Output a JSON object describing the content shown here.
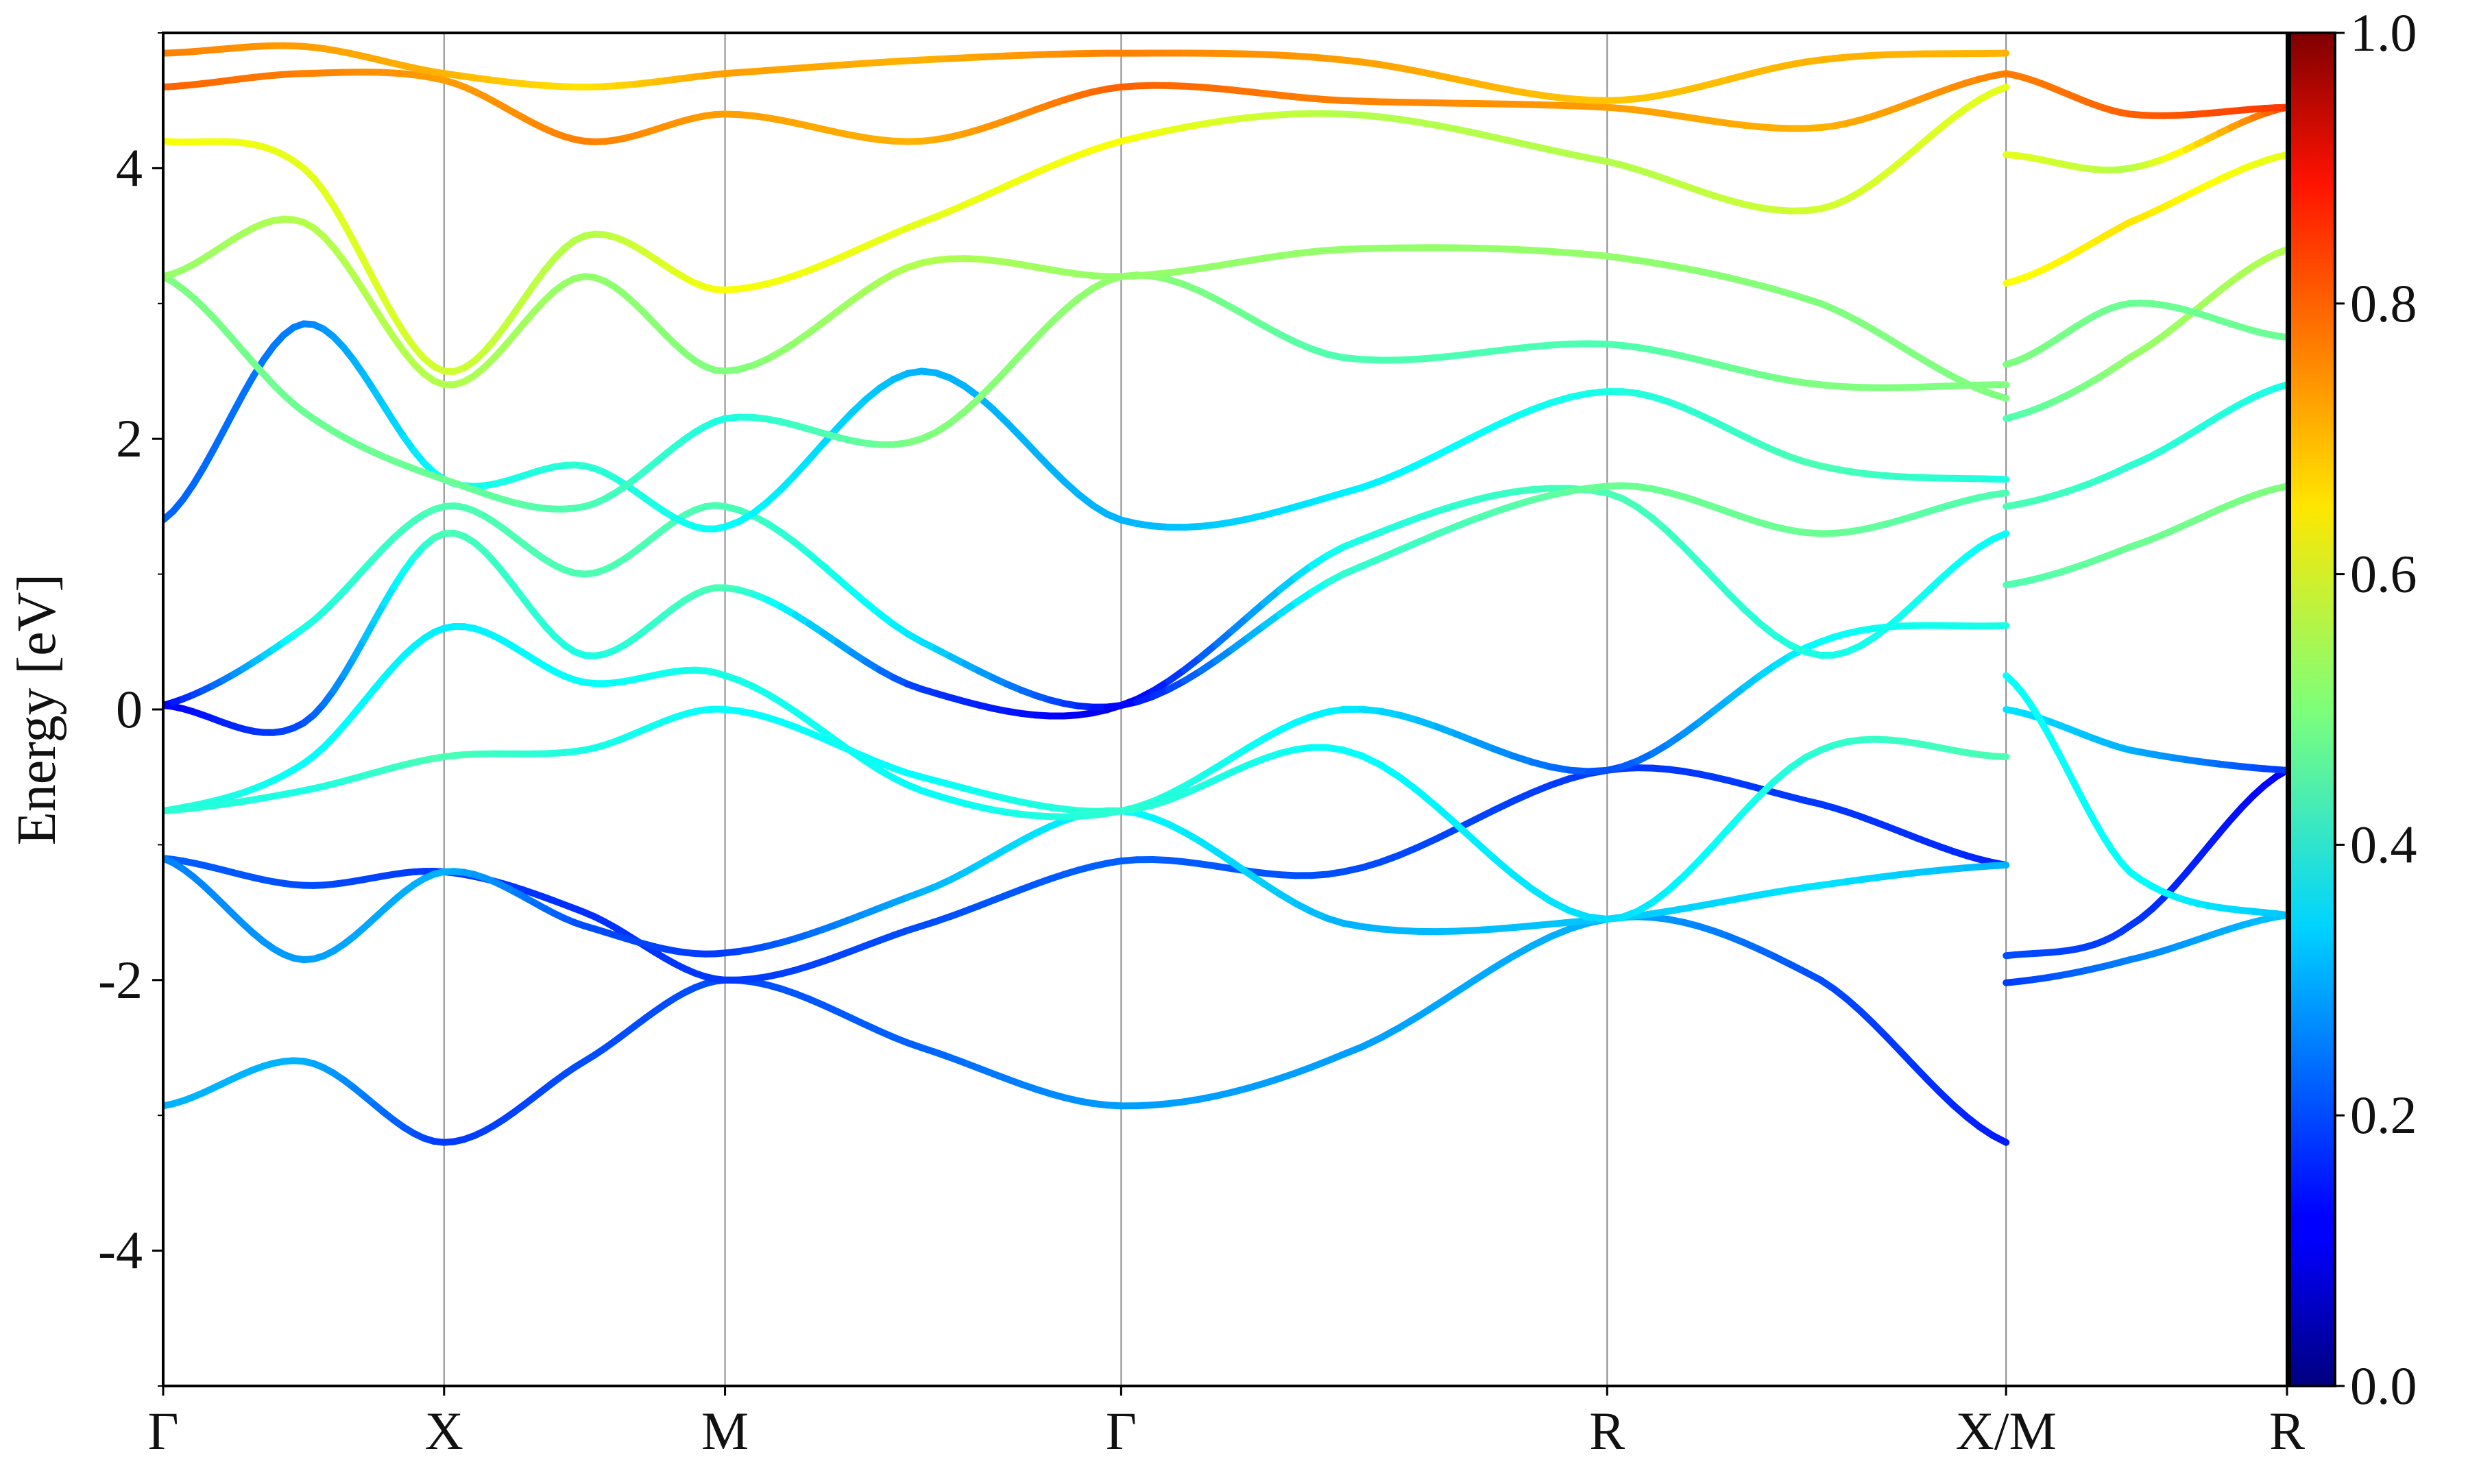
{
  "chart_data": {
    "type": "line",
    "title": "",
    "xlabel": "",
    "ylabel": "Energy [eV]",
    "ylim": [
      -5,
      5
    ],
    "xlim": [
      0,
      7.56
    ],
    "grid": "vertical lines at high-symmetry points only",
    "y_ticks": [
      -4,
      -2,
      0,
      2,
      4
    ],
    "y_tick_labels": [
      "-4",
      "-2",
      "0",
      "2",
      "4"
    ],
    "k_points": [
      {
        "x": 0,
        "label": "Γ"
      },
      {
        "x": 1.0,
        "label": "X"
      },
      {
        "x": 2.0,
        "label": "M"
      },
      {
        "x": 3.41,
        "label": "Γ"
      },
      {
        "x": 5.14,
        "label": "R"
      },
      {
        "x": 6.56,
        "label": "X/M"
      },
      {
        "x": 7.56,
        "label": "R"
      }
    ],
    "colorbar": {
      "colormap": "jet",
      "range": [
        0.0,
        1.0
      ],
      "ticks": [
        0.0,
        0.2,
        0.4,
        0.6,
        0.8,
        1.0
      ],
      "tick_labels": [
        "0.0",
        "0.2",
        "0.4",
        "0.6",
        "0.8",
        "1.0"
      ]
    },
    "series": [
      {
        "x": [
          0,
          0.5,
          1.0,
          1.5,
          2.0,
          2.7,
          3.41,
          4.2,
          5.14,
          5.9,
          6.56
        ],
        "y": [
          -2.93,
          -2.6,
          -3.2,
          -2.6,
          -2.0,
          -2.5,
          -2.93,
          -2.55,
          -1.55,
          -2.0,
          -3.2
        ],
        "w": [
          0.3,
          0.3,
          0.18,
          0.2,
          0.2,
          0.22,
          0.28,
          0.28,
          0.3,
          0.2,
          0.15
        ]
      },
      {
        "x": [
          0,
          0.5,
          1.0,
          1.5,
          2.0,
          2.7,
          3.41,
          4.2,
          5.14,
          5.9,
          6.56
        ],
        "y": [
          -1.1,
          -1.3,
          -1.2,
          -1.5,
          -2.0,
          -1.6,
          -1.12,
          -1.2,
          -0.45,
          -0.7,
          -1.15
        ],
        "w": [
          0.22,
          0.2,
          0.18,
          0.17,
          0.18,
          0.2,
          0.22,
          0.2,
          0.18,
          0.18,
          0.16
        ]
      },
      {
        "x": [
          0,
          0.5,
          1.0,
          1.5,
          2.0,
          2.7,
          3.41,
          4.2,
          5.14,
          5.9,
          6.56
        ],
        "y": [
          -1.1,
          -1.85,
          -1.2,
          -1.6,
          -1.8,
          -1.35,
          -0.75,
          -1.58,
          -1.55,
          -1.3,
          -1.15
        ],
        "w": [
          0.25,
          0.28,
          0.3,
          0.2,
          0.18,
          0.3,
          0.38,
          0.3,
          0.32,
          0.35,
          0.3
        ]
      },
      {
        "x": [
          0,
          0.5,
          1.0,
          1.5,
          2.0,
          2.7,
          3.41,
          4.2,
          5.14,
          5.9,
          6.56
        ],
        "y": [
          -0.75,
          -0.6,
          -0.35,
          -0.3,
          0.0,
          -0.5,
          -0.75,
          -0.3,
          -1.55,
          -0.3,
          -0.35
        ],
        "w": [
          0.42,
          0.4,
          0.45,
          0.4,
          0.38,
          0.38,
          0.42,
          0.38,
          0.34,
          0.42,
          0.45
        ]
      },
      {
        "x": [
          0,
          0.5,
          1.0,
          1.5,
          2.0,
          2.7,
          3.41,
          4.2,
          5.14,
          5.9,
          6.56
        ],
        "y": [
          -0.75,
          -0.4,
          0.6,
          0.2,
          0.25,
          -0.6,
          -0.75,
          0.0,
          -0.45,
          0.5,
          0.62
        ],
        "w": [
          0.42,
          0.38,
          0.36,
          0.38,
          0.4,
          0.38,
          0.42,
          0.36,
          0.2,
          0.38,
          0.4
        ]
      },
      {
        "x": [
          0,
          0.5,
          1.0,
          1.5,
          2.0,
          2.7,
          3.41,
          4.2,
          5.14,
          5.9,
          6.56
        ],
        "y": [
          0.03,
          -0.1,
          1.3,
          0.4,
          0.9,
          0.15,
          0.03,
          1.2,
          1.6,
          0.4,
          1.3
        ],
        "w": [
          0.12,
          0.2,
          0.45,
          0.4,
          0.45,
          0.18,
          0.1,
          0.4,
          0.45,
          0.4,
          0.38
        ]
      },
      {
        "x": [
          0,
          0.5,
          1.0,
          1.5,
          2.0,
          2.7,
          3.41,
          4.2,
          5.14,
          5.9,
          6.56
        ],
        "y": [
          0.03,
          0.6,
          1.5,
          1.0,
          1.5,
          0.5,
          0.03,
          1.0,
          1.65,
          1.3,
          1.6
        ],
        "w": [
          0.12,
          0.4,
          0.45,
          0.45,
          0.45,
          0.35,
          0.12,
          0.42,
          0.48,
          0.48,
          0.45
        ]
      },
      {
        "x": [
          0,
          0.5,
          1.0,
          1.5,
          2.0,
          2.7,
          3.41,
          4.2,
          5.14,
          5.9,
          6.56
        ],
        "y": [
          1.4,
          2.85,
          1.7,
          1.8,
          1.35,
          2.5,
          1.4,
          1.6,
          2.35,
          1.8,
          1.7
        ],
        "w": [
          0.22,
          0.25,
          0.38,
          0.42,
          0.38,
          0.3,
          0.3,
          0.36,
          0.4,
          0.45,
          0.4
        ]
      },
      {
        "x": [
          0,
          0.5,
          1.0,
          1.5,
          2.0,
          2.7,
          3.41,
          4.2,
          5.14,
          5.9,
          6.56
        ],
        "y": [
          3.2,
          2.2,
          1.7,
          1.5,
          2.15,
          2.0,
          3.2,
          2.6,
          2.7,
          2.4,
          2.4
        ],
        "w": [
          0.5,
          0.48,
          0.48,
          0.45,
          0.4,
          0.5,
          0.52,
          0.45,
          0.45,
          0.5,
          0.5
        ]
      },
      {
        "x": [
          0,
          0.5,
          1.0,
          1.5,
          2.0,
          2.7,
          3.41,
          4.2,
          5.14,
          5.9,
          6.56
        ],
        "y": [
          3.2,
          3.6,
          2.4,
          3.2,
          2.5,
          3.3,
          3.2,
          3.4,
          3.35,
          3.0,
          2.3
        ],
        "w": [
          0.52,
          0.55,
          0.55,
          0.52,
          0.5,
          0.55,
          0.52,
          0.52,
          0.52,
          0.5,
          0.5
        ]
      },
      {
        "x": [
          0,
          0.5,
          1.0,
          1.5,
          2.0,
          2.7,
          3.41,
          4.2,
          5.14,
          5.9,
          6.56
        ],
        "y": [
          4.2,
          4.0,
          2.5,
          3.5,
          3.1,
          3.6,
          4.2,
          4.4,
          4.05,
          3.7,
          4.6
        ],
        "w": [
          0.62,
          0.6,
          0.58,
          0.55,
          0.62,
          0.6,
          0.62,
          0.55,
          0.55,
          0.58,
          0.6
        ]
      },
      {
        "x": [
          0,
          0.5,
          1.0,
          1.5,
          2.0,
          2.7,
          3.41,
          4.2,
          5.14,
          5.9,
          6.56
        ],
        "y": [
          4.6,
          4.7,
          4.65,
          4.2,
          4.4,
          4.2,
          4.6,
          4.5,
          4.45,
          4.3,
          4.7
        ],
        "w": [
          0.78,
          0.75,
          0.72,
          0.75,
          0.72,
          0.7,
          0.78,
          0.75,
          0.72,
          0.7,
          0.75
        ]
      },
      {
        "x": [
          0,
          0.5,
          1.0,
          1.5,
          2.0,
          2.7,
          3.41,
          4.2,
          5.14,
          5.9,
          6.56
        ],
        "y": [
          4.85,
          4.9,
          4.7,
          4.6,
          4.7,
          4.8,
          4.85,
          4.8,
          4.5,
          4.8,
          4.85
        ],
        "w": [
          0.75,
          0.72,
          0.7,
          0.65,
          0.72,
          0.7,
          0.75,
          0.72,
          0.68,
          0.7,
          0.7
        ]
      },
      {
        "x": [
          6.56,
          7.0,
          7.56
        ],
        "y": [
          -1.82,
          -1.6,
          -0.45
        ],
        "w": [
          0.2,
          0.18,
          0.12
        ]
      },
      {
        "x": [
          6.56,
          7.0,
          7.56
        ],
        "y": [
          -2.02,
          -1.85,
          -1.52
        ],
        "w": [
          0.18,
          0.25,
          0.32
        ]
      },
      {
        "x": [
          6.56,
          7.0,
          7.56
        ],
        "y": [
          0.0,
          -0.3,
          -0.45
        ],
        "w": [
          0.35,
          0.3,
          0.18
        ]
      },
      {
        "x": [
          6.56,
          7.0,
          7.56
        ],
        "y": [
          0.25,
          -1.2,
          -1.52
        ],
        "w": [
          0.38,
          0.38,
          0.32
        ]
      },
      {
        "x": [
          6.56,
          7.0,
          7.56
        ],
        "y": [
          0.92,
          1.2,
          1.65
        ],
        "w": [
          0.45,
          0.48,
          0.5
        ]
      },
      {
        "x": [
          6.56,
          7.0,
          7.56
        ],
        "y": [
          1.5,
          1.8,
          2.4
        ],
        "w": [
          0.45,
          0.42,
          0.4
        ]
      },
      {
        "x": [
          6.56,
          7.0,
          7.56
        ],
        "y": [
          2.15,
          2.6,
          3.4
        ],
        "w": [
          0.45,
          0.52,
          0.55
        ]
      },
      {
        "x": [
          6.56,
          7.0,
          7.56
        ],
        "y": [
          2.55,
          3.0,
          2.75
        ],
        "w": [
          0.5,
          0.48,
          0.48
        ]
      },
      {
        "x": [
          6.56,
          7.0,
          7.56
        ],
        "y": [
          3.15,
          3.6,
          4.1
        ],
        "w": [
          0.62,
          0.65,
          0.6
        ]
      },
      {
        "x": [
          6.56,
          7.0,
          7.56
        ],
        "y": [
          4.1,
          4.0,
          4.45
        ],
        "w": [
          0.6,
          0.55,
          0.8
        ]
      },
      {
        "x": [
          6.56,
          7.0,
          7.56
        ],
        "y": [
          4.7,
          4.4,
          4.45
        ],
        "w": [
          0.75,
          0.78,
          0.82
        ]
      }
    ]
  }
}
